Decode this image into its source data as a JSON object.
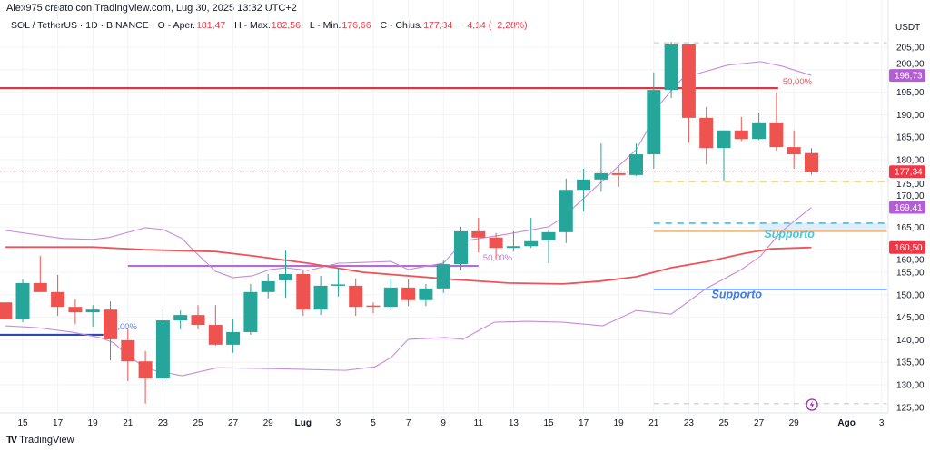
{
  "header": {
    "attribution": "Alex975 creato con TradingView.com, Lug 30, 2025 13:32 UTC+2",
    "symbol": "SOL / TetherUS · 1D · BINANCE",
    "o_label": "O - Aper.",
    "o_value": "181,47",
    "h_label": "H - Max.",
    "h_value": "182,56",
    "l_label": "L - Min.",
    "l_value": "176,66",
    "c_label": "C - Chius.",
    "c_value": "177,34",
    "change": "−4,14 (−2,28%)"
  },
  "footer": {
    "logo_mark": "TV",
    "logo_text": "TradingView"
  },
  "colors": {
    "up": "#26a69a",
    "down": "#ef5350",
    "ma": "#f0525a",
    "band": "#c98bdb",
    "grid": "#f2f3f6"
  },
  "chart_data": {
    "type": "candlestick",
    "currency": "USDT",
    "x_origin_date": "2025-06-15",
    "ylim": [
      123,
      209
    ],
    "y_ticks": [
      "205,00",
      "200,00",
      "195,00",
      "190,00",
      "185,00",
      "180,00",
      "175,00",
      "170,00",
      "165,00",
      "160,00",
      "155,00",
      "150,00",
      "145,00",
      "140,00",
      "135,00",
      "130,00",
      "125,00"
    ],
    "y_tick_values": [
      205,
      200,
      195,
      190,
      185,
      180,
      175,
      170,
      165,
      160,
      155,
      150,
      145,
      140,
      135,
      130,
      125
    ],
    "x_ticks": [
      {
        "day": 0,
        "label": "15"
      },
      {
        "day": 2,
        "label": "17"
      },
      {
        "day": 4,
        "label": "19"
      },
      {
        "day": 6,
        "label": "21"
      },
      {
        "day": 8,
        "label": "23"
      },
      {
        "day": 10,
        "label": "25"
      },
      {
        "day": 12,
        "label": "27"
      },
      {
        "day": 14,
        "label": "29"
      },
      {
        "day": 16,
        "label": "Lug",
        "bold": true
      },
      {
        "day": 18,
        "label": "3"
      },
      {
        "day": 20,
        "label": "5"
      },
      {
        "day": 22,
        "label": "7"
      },
      {
        "day": 24,
        "label": "9"
      },
      {
        "day": 26,
        "label": "11"
      },
      {
        "day": 28,
        "label": "13"
      },
      {
        "day": 30,
        "label": "15"
      },
      {
        "day": 32,
        "label": "17"
      },
      {
        "day": 34,
        "label": "19"
      },
      {
        "day": 36,
        "label": "21"
      },
      {
        "day": 38,
        "label": "23"
      },
      {
        "day": 40,
        "label": "25"
      },
      {
        "day": 42,
        "label": "27"
      },
      {
        "day": 44,
        "label": "29"
      },
      {
        "day": 47,
        "label": "Ago",
        "bold": true
      },
      {
        "day": 49,
        "label": "3"
      }
    ],
    "candles_ohlc_from_day_-1": [
      [
        148.3,
        148.3,
        144.5,
        144.5
      ],
      [
        144.5,
        153.4,
        143.9,
        152.6
      ],
      [
        152.6,
        158.6,
        150.6,
        150.6
      ],
      [
        150.6,
        154.4,
        145.3,
        147.3
      ],
      [
        147.3,
        149.0,
        143.5,
        146.1
      ],
      [
        146.1,
        147.7,
        142.9,
        146.7
      ],
      [
        146.7,
        148.5,
        135.4,
        140.1
      ],
      [
        139.9,
        142.3,
        130.8,
        135.2
      ],
      [
        135.2,
        137.5,
        125.8,
        131.4
      ],
      [
        131.4,
        146.7,
        130.4,
        144.3
      ],
      [
        144.3,
        146.5,
        142.3,
        145.5
      ],
      [
        145.5,
        147.7,
        142.3,
        143.3
      ],
      [
        143.3,
        147.7,
        138.7,
        138.9
      ],
      [
        138.9,
        144.5,
        137.1,
        141.7
      ],
      [
        141.7,
        152.4,
        141.1,
        150.6
      ],
      [
        150.6,
        154.6,
        149.2,
        153.0
      ],
      [
        153.2,
        159.8,
        149.3,
        154.6
      ],
      [
        154.6,
        155.4,
        145.3,
        146.7
      ],
      [
        146.7,
        154.2,
        145.5,
        152.0
      ],
      [
        152.2,
        156.0,
        149.6,
        152.3
      ],
      [
        152.0,
        153.6,
        145.3,
        147.3
      ],
      [
        147.6,
        148.3,
        145.9,
        147.5
      ],
      [
        147.3,
        153.6,
        146.5,
        151.6
      ],
      [
        151.6,
        153.4,
        147.5,
        148.8
      ],
      [
        148.8,
        152.4,
        147.5,
        151.4
      ],
      [
        151.4,
        157.6,
        150.4,
        156.8
      ],
      [
        156.8,
        165.1,
        155.4,
        164.1
      ],
      [
        164.1,
        167.1,
        159.4,
        162.7
      ],
      [
        162.7,
        163.7,
        158.0,
        160.4
      ],
      [
        160.4,
        164.1,
        159.6,
        160.8
      ],
      [
        160.8,
        167.1,
        160.4,
        161.9
      ],
      [
        162.1,
        164.5,
        157.0,
        163.9
      ],
      [
        163.9,
        175.8,
        161.5,
        173.3
      ],
      [
        173.3,
        178.0,
        168.5,
        175.6
      ],
      [
        175.6,
        183.6,
        172.9,
        177.0
      ],
      [
        177.0,
        178.6,
        174.0,
        176.6
      ],
      [
        176.6,
        183.6,
        176.4,
        181.2
      ],
      [
        181.2,
        199.4,
        178.0,
        195.5
      ],
      [
        195.5,
        206.2,
        193.7,
        205.6
      ],
      [
        205.6,
        205.6,
        183.8,
        189.3
      ],
      [
        189.3,
        191.7,
        179.0,
        182.6
      ],
      [
        182.6,
        186.5,
        175.4,
        186.5
      ],
      [
        186.5,
        189.5,
        184.2,
        184.6
      ],
      [
        184.6,
        190.5,
        184.4,
        188.3
      ],
      [
        188.3,
        194.9,
        182.0,
        182.8
      ],
      [
        182.8,
        186.5,
        178.0,
        181.2
      ],
      [
        181.47,
        182.56,
        176.66,
        177.34
      ]
    ],
    "moving_average": [
      [
        -1,
        160.6
      ],
      [
        4,
        160.6
      ],
      [
        7,
        160.0
      ],
      [
        9,
        159.8
      ],
      [
        11,
        159.6
      ],
      [
        13.2,
        158.6
      ],
      [
        16.3,
        157.0
      ],
      [
        19.4,
        155.0
      ],
      [
        24.6,
        153.4
      ],
      [
        27.7,
        152.6
      ],
      [
        30.8,
        152.4
      ],
      [
        32.9,
        153.0
      ],
      [
        35,
        154.0
      ],
      [
        37,
        156.0
      ],
      [
        39.1,
        157.4
      ],
      [
        41.2,
        159.2
      ],
      [
        42.7,
        160.2
      ],
      [
        45,
        160.5
      ]
    ],
    "band_upper": [
      [
        -1,
        164.3
      ],
      [
        2.3,
        162.5
      ],
      [
        4,
        162.3
      ],
      [
        4.9,
        162.7
      ],
      [
        7,
        164.9
      ],
      [
        8,
        164.5
      ],
      [
        9.1,
        162.5
      ],
      [
        9.6,
        160.4
      ],
      [
        11,
        155.2
      ],
      [
        12,
        153.8
      ],
      [
        13.1,
        154.2
      ],
      [
        14.1,
        155.6
      ],
      [
        15,
        156.0
      ],
      [
        16.3,
        155.4
      ],
      [
        18,
        157.0
      ],
      [
        21,
        157.4
      ],
      [
        22,
        155.6
      ],
      [
        23.1,
        156.4
      ],
      [
        24,
        157.0
      ],
      [
        24.7,
        160.0
      ],
      [
        25.4,
        162.1
      ],
      [
        27.7,
        163.5
      ],
      [
        30,
        165.1
      ],
      [
        30.8,
        167.1
      ],
      [
        35,
        182.2
      ],
      [
        35.6,
        186.3
      ],
      [
        36,
        190.7
      ],
      [
        36.9,
        194.9
      ],
      [
        37.6,
        197.9
      ],
      [
        38.4,
        199.0
      ],
      [
        40.2,
        201.0
      ],
      [
        42.1,
        201.8
      ],
      [
        43.3,
        200.8
      ],
      [
        45,
        198.73
      ]
    ],
    "band_lower": [
      [
        -1,
        143.1
      ],
      [
        0.8,
        142.7
      ],
      [
        2.8,
        141.7
      ],
      [
        4.4,
        140.5
      ],
      [
        5.2,
        139.3
      ],
      [
        6,
        136.5
      ],
      [
        6.7,
        134.6
      ],
      [
        7.5,
        133.2
      ],
      [
        9.1,
        132.0
      ],
      [
        11.1,
        133.8
      ],
      [
        14.2,
        133.6
      ],
      [
        18.4,
        133.2
      ],
      [
        20.1,
        134.0
      ],
      [
        21,
        136.0
      ],
      [
        22,
        140.1
      ],
      [
        24.1,
        140.5
      ],
      [
        25.1,
        140.1
      ],
      [
        26.9,
        143.9
      ],
      [
        28.8,
        144.1
      ],
      [
        30.8,
        143.9
      ],
      [
        33.1,
        143.1
      ],
      [
        35,
        146.5
      ],
      [
        37,
        145.7
      ],
      [
        39,
        151.4
      ],
      [
        41,
        155.6
      ],
      [
        42.1,
        158.6
      ],
      [
        43.3,
        164.1
      ],
      [
        45,
        169.41
      ]
    ],
    "levels": [
      {
        "name": "red-fib-level",
        "price": 195.9,
        "from": -2,
        "to": 43.1,
        "color": "#d23b4a",
        "width": 2.2,
        "dash": "",
        "label": "50,00%",
        "label_color": "#f0525a"
      },
      {
        "name": "blue-fib-level",
        "price": 141.1,
        "from": -2,
        "to": 4.6,
        "color": "#2a4bb5",
        "width": 2.2,
        "dash": "",
        "label": "50,00%",
        "label_color": "#5d7fe0"
      },
      {
        "name": "purple-fib-level",
        "price": 156.4,
        "from": 6,
        "to": 26,
        "color": "#b16fd0",
        "width": 2.2,
        "dash": "",
        "label": "50,00%",
        "label_color": "#c17fd9"
      },
      {
        "name": "top-range-level",
        "price": 206.0,
        "from": 36,
        "to": 49.3,
        "color": "#c8c8c8",
        "width": 1.2,
        "dash": "6 5"
      },
      {
        "name": "bottom-range-level",
        "price": 125.8,
        "from": 36,
        "to": 49.3,
        "color": "#c8c8c8",
        "width": 1.2,
        "dash": "6 5"
      },
      {
        "name": "yellow-level",
        "price": 175.2,
        "from": 36,
        "to": 49.3,
        "color": "#f2c744",
        "width": 1.6,
        "dash": "7 6"
      },
      {
        "name": "cyan-level",
        "price": 165.9,
        "from": 36,
        "to": 49.3,
        "color": "#3ec2dc",
        "width": 1.6,
        "dash": "7 6"
      },
      {
        "name": "orange-level",
        "price": 164.1,
        "from": 36,
        "to": 49.3,
        "color": "#f7c07f",
        "width": 2,
        "dash": ""
      },
      {
        "name": "support-level",
        "price": 151.2,
        "from": 36,
        "to": 49.3,
        "color": "#4f8bea",
        "width": 1.6,
        "dash": ""
      }
    ],
    "support_zone": {
      "from": 42,
      "to": 49.3,
      "top": 165.9,
      "bottom": 164.1,
      "color": "#d9eaf9"
    },
    "annotations": [
      {
        "text": "Supporto",
        "day": 42.3,
        "price": 162.7,
        "color": "#45c4de"
      },
      {
        "text": "Supporto",
        "day": 39.3,
        "price": 149.3,
        "color": "#3f7be6"
      }
    ],
    "price_badges": [
      {
        "value": "198,73",
        "price": 198.73,
        "color": "#b35ed3"
      },
      {
        "value": "177,34",
        "price": 177.34,
        "color": "#f23645"
      },
      {
        "value": "169,41",
        "price": 169.41,
        "color": "#b35ed3"
      },
      {
        "value": "160,50",
        "price": 160.5,
        "color": "#f23645"
      }
    ],
    "last_price": 177.34
  }
}
